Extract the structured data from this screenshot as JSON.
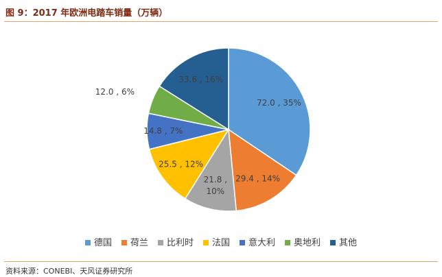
{
  "figure_title": "图 9：2017 年欧洲电踏车销量（万辆）",
  "source_note": "资料来源：CONEBI、天风证券研究所",
  "colors": {
    "accent_title": "#7f2a12",
    "rule": "#e0a56a"
  },
  "chart_data": {
    "type": "pie",
    "title": "",
    "slices": [
      {
        "name": "德国",
        "value": 72.0,
        "percent": "35%",
        "label": "72.0 , 35%",
        "color": "#5b9bd5",
        "label_color": "#404040"
      },
      {
        "name": "荷兰",
        "value": 29.4,
        "percent": "14%",
        "label": "29.4 , 14%",
        "color": "#ed7d31",
        "label_color": "#404040"
      },
      {
        "name": "比利时",
        "value": 21.8,
        "percent": "10%",
        "label": "21.8 , 10%",
        "color": "#a5a5a5",
        "label_color": "#404040"
      },
      {
        "name": "法国",
        "value": 25.5,
        "percent": "12%",
        "label": "25.5 , 12%",
        "color": "#ffc000",
        "label_color": "#404040"
      },
      {
        "name": "意大利",
        "value": 14.8,
        "percent": "7%",
        "label": "14.8 , 7%",
        "color": "#4472c4",
        "label_color": "#404040"
      },
      {
        "name": "奥地利",
        "value": 12.0,
        "percent": "6%",
        "label": "12.0 , 6%",
        "color": "#70ad47",
        "label_color": "#404040"
      },
      {
        "name": "其他",
        "value": 33.6,
        "percent": "16%",
        "label": "33.6 , 16%",
        "color": "#255e91",
        "label_color": "#404040"
      }
    ],
    "legend_position": "bottom"
  }
}
